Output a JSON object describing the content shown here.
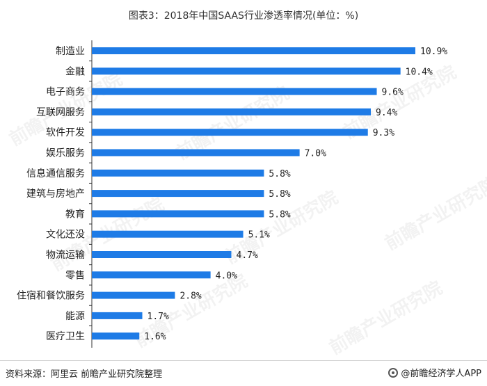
{
  "title": "图表3：2018年中国SAAS行业渗透率情况(单位：%)",
  "footer": {
    "source": "资料来源：阿里云 前瞻产业研究院整理",
    "brand": "@前瞻经济学人APP"
  },
  "watermark": "前瞻产业研究院",
  "colors": {
    "bar": "#1e7be6"
  },
  "chart_data": {
    "type": "bar",
    "orientation": "horizontal",
    "categories": [
      "制造业",
      "金融",
      "电子商务",
      "互联网服务",
      "软件开发",
      "娱乐服务",
      "信息通信服务",
      "建筑与房地产",
      "教育",
      "文化还没",
      "物流运输",
      "零售",
      "住宿和餐饮服务",
      "能源",
      "医疗卫生"
    ],
    "values": [
      10.9,
      10.4,
      9.6,
      9.4,
      9.3,
      7.0,
      5.8,
      5.8,
      5.8,
      5.1,
      4.7,
      4.0,
      2.8,
      1.7,
      1.6
    ],
    "value_labels": [
      "10.9%",
      "10.4%",
      "9.6%",
      "9.4%",
      "9.3%",
      "7.0%",
      "5.8%",
      "5.8%",
      "5.8%",
      "5.1%",
      "4.7%",
      "4.0%",
      "2.8%",
      "1.7%",
      "1.6%"
    ],
    "title": "图表3：2018年中国SAAS行业渗透率情况(单位：%)",
    "xlabel": "",
    "ylabel": "",
    "xlim": [
      0,
      10.9
    ],
    "grid": false,
    "legend": "none"
  }
}
